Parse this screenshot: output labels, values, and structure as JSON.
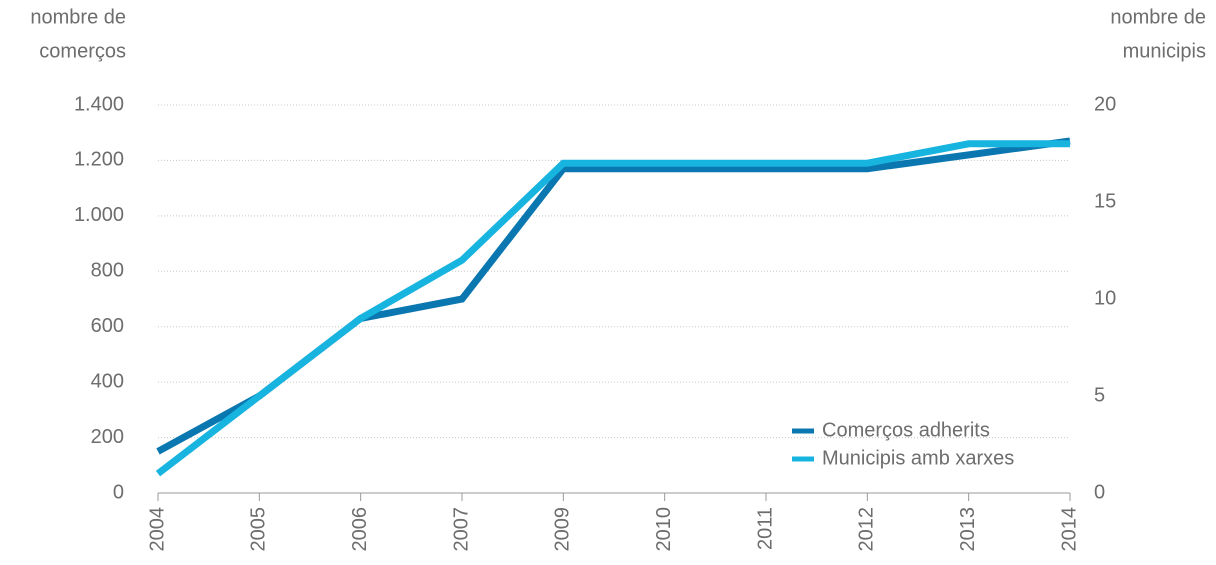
{
  "chart_data": {
    "type": "line",
    "y_label": [
      "nombre de",
      "comerços"
    ],
    "y2_label": [
      "nombre de",
      "municipis"
    ],
    "categories": [
      "2004",
      "2005",
      "2006",
      "2007",
      "2009",
      "2010",
      "2011",
      "2012",
      "2013",
      "2014"
    ],
    "series": [
      {
        "name": "Comerços adherits",
        "color": "#0a77b0",
        "values": [
          150,
          350,
          630,
          700,
          1170,
          1170,
          1170,
          1170,
          1220,
          1270
        ]
      },
      {
        "name": "Municipis amb xarxes",
        "color": "#18b4e0",
        "axis": "y2",
        "values": [
          1,
          5,
          9,
          12,
          17,
          17,
          17,
          17,
          18,
          18
        ]
      }
    ],
    "ylim": [
      0,
      1400
    ],
    "yticks": [
      0,
      200,
      400,
      600,
      800,
      {
        "value": 1000,
        "label": "1.000"
      },
      {
        "value": 1200,
        "label": "1.200"
      },
      {
        "value": 1400,
        "label": "1.400"
      }
    ],
    "y2lim": [
      0,
      20
    ],
    "y2ticks": [
      0,
      5,
      10,
      15,
      20
    ],
    "grid": true,
    "legend": "lower right"
  }
}
